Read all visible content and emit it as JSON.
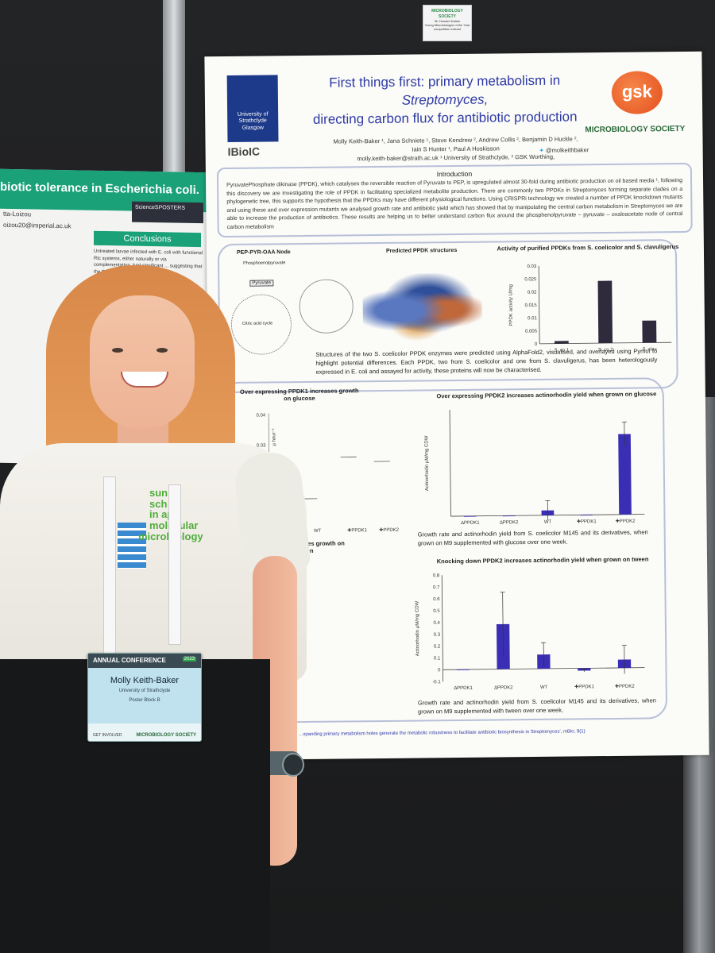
{
  "tag": {
    "title": "MICROBIOLOGY SOCIETY",
    "line1": "Sir Howard Dalton",
    "line2": "Young Microbiologist of the Year",
    "line3": "competition entrant"
  },
  "left_poster": {
    "title": "biotic tolerance in Escherichia coli.",
    "author": "tta-Loizou",
    "email": "oizou20@imperial.ac.uk",
    "sci_logo": "ScienceSPOSTERS",
    "conclusions": "Conclusions",
    "body": "Untreated larvae infected with E. coli with functional Rtc systems, either naturally or via complementation, had significant ... suggesting that the Rtc ... bacterial virule... in the abs..."
  },
  "poster": {
    "title_line1": "First things first: primary metabolism in",
    "title_line2": "Streptomyces,",
    "title_line3": "directing carbon flux for antibiotic production",
    "strath": "University of Strathclyde Glasgow",
    "gsk": "gsk",
    "msoc": "MICROBIOLOGY SOCIETY",
    "ibioic": "IBioIC",
    "authors_1": "Molly Keith-Baker ¹, Jana Schniete ¹, Steve Kendrew ², Andrew Collis ², Benjamin D Huckle ²,",
    "authors_2": "Iain S Hunter ¹, Paul A Hoskisson",
    "email": "molly.keith-baker@strath.ac.uk",
    "affil": "¹ University of Strathclyde, ² GSK Worthing,",
    "twitter": "@molkeithbaker",
    "intro_heading": "Introduction",
    "intro_text": "PyruvatePhosphate dikinase (PPDK), which catalyses the reversible reaction of Pyruvate to PEP, is upregulated almost 30-fold during antibiotic production on oil based media ¹, following this discovery we are investigating the role of PPDK in facilitating specialized metabolite production. There are commonly two PPDKs in Streptomyces forming separate clades on a phylogenetic tree, this supports the hypothesis that the PPDKs may have different physiological functions. Using CRISPRi technology we created a number of PPDK knockdown mutants and using these and over expression mutants we analysed growth rate and antibiotic yield which has showed that by manipulating the central carbon metabolism in Streptomyces we are able to increase the production of antibiotics. These results are helping us to better understand carbon flux around the phosphenolpyruvate – pyruvate – oxaloacetate node of central carbon metabolism",
    "node_title": "PEP-PYR-OAA Node",
    "node_pep": "Phosphoenolpyruvate",
    "node_pyr": "Pyruvate",
    "node_tca": "Citric acid cycle",
    "structures_title": "Predicted PPDK structures",
    "structures_caption": "Structures of the two S. coelicolor PPDK enzymes were predicted using AlphaFold2, visualised, and overlayed using Pymol to highlight potential differences. Each PPDK, two from S. coelicolor and one from S. clavuligerus, has been heterologously expressed in E. coli and assayed for activity, these proteins will now be characterised.",
    "growth_glucose_title": "Over expressing PPDK1 increases growth on glucose",
    "growth_tween_title": "PPDK1 increases growth on tween",
    "caption_glucose": "Growth rate and actinorhodin yield from S. coelicolor M145 and its derivatives, when grown on M9 supplemented with glucose over one week.",
    "caption_tween": "Growth rate and actinorhodin yield from S. coelicolor M145 and its derivatives, when grown on M9 supplemented with tween over one week.",
    "reference": "...xpanding primary metabolism holes generate the metabolic robustness to facilitate antibiotic biosynthesis in Streptomyces', mBio, 9(1)"
  },
  "badge": {
    "header": "ANNUAL CONFERENCE",
    "year": "2023",
    "name": "Molly Keith-Baker",
    "affiliation": "University of Strathclyde",
    "poster": "Poster Block B",
    "footer": "GET INVOLVED",
    "society": "MICROBIOLOGY SOCIETY"
  },
  "shirt": {
    "line1": "sun",
    "line2": "sch",
    "line3": "in ap",
    "line4": "molecular",
    "line5": "microbiology"
  },
  "chart_data": [
    {
      "type": "bar",
      "title": "Activity of purified PPDKs from S. coelicolor and S. clavuligerus",
      "categories": [
        "S. co 1",
        "S. co 2",
        "S. clav"
      ],
      "values": [
        0.001,
        0.024,
        0.0085
      ],
      "ylabel": "PPDK activity U/mg",
      "ylim": [
        0,
        0.03
      ],
      "yticks": [
        0,
        0.005,
        0.01,
        0.015,
        0.02,
        0.025,
        0.03
      ],
      "color": "#2f2a3c"
    },
    {
      "type": "bar",
      "title": "Over expressing PPDK2 increases actinorhodin yield when grown on glucose",
      "categories": [
        "∆PPDK1",
        "∆PPDK2",
        "WT",
        "✚PPDK1",
        "✚PPDK2"
      ],
      "values": [
        0,
        0,
        0.02,
        0,
        0.33
      ],
      "errors": [
        0,
        0,
        0.04,
        0,
        0.05
      ],
      "ylabel": "Actinorhodin µM/mg CDW",
      "color": "#3a2fb4"
    },
    {
      "type": "bar",
      "title": "Knocking down PPDK2 increases actinorhodin yield when grown on tween",
      "categories": [
        "∆PPDK1",
        "∆PPDK2",
        "WT",
        "✚PPDK1",
        "✚PPDK2"
      ],
      "values": [
        -0.005,
        0.38,
        0.12,
        -0.02,
        0.07
      ],
      "errors": [
        0,
        0.27,
        0.1,
        0.01,
        0.12
      ],
      "ylabel": "Actinorhodin µM/mg CDW",
      "ylim": [
        -0.1,
        0.8
      ],
      "yticks": [
        -0.1,
        0,
        0.1,
        0.2,
        0.3,
        0.4,
        0.5,
        0.6,
        0.7,
        0.8
      ],
      "color": "#3a2fb4"
    },
    {
      "type": "scatter",
      "title": "Over expressing PPDK1 increases growth on glucose",
      "categories": [
        "WT",
        "✚PPDK1",
        "✚PPDK2"
      ],
      "yticks_visible": [
        "0.04",
        "0.03"
      ],
      "ylabel": "µ hour⁻¹"
    }
  ]
}
